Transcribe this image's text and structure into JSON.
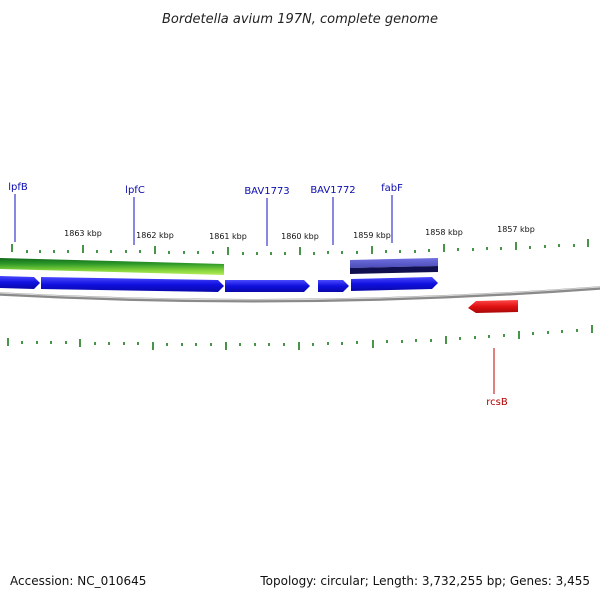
{
  "title": "Bordetella avium 197N, complete genome",
  "footer": {
    "accession": "Accession: NC_010645",
    "summary": "Topology: circular; Length: 3,732,255 bp; Genes: 3,455"
  },
  "kbp_labels": [
    "1863 kbp",
    "1862 kbp",
    "1861 kbp",
    "1860 kbp",
    "1859 kbp",
    "1858 kbp",
    "1857 kbp"
  ],
  "gene_labels": [
    "lpfB",
    "lpfC",
    "BAV1773",
    "BAV1772",
    "fabF",
    "rcsB"
  ],
  "colors": {
    "forward_gene": "#1010e0",
    "reverse_gene": "#e01010",
    "label_blue": "#0b0bb0",
    "label_red": "#b00000",
    "tick": "#1a7a1a",
    "backbone": "#8a8a8a",
    "green_band_dark": "#0f6a1a",
    "green_band_light": "#9ae040",
    "purple_band": "#5a5acc",
    "navy_band": "#101050"
  }
}
